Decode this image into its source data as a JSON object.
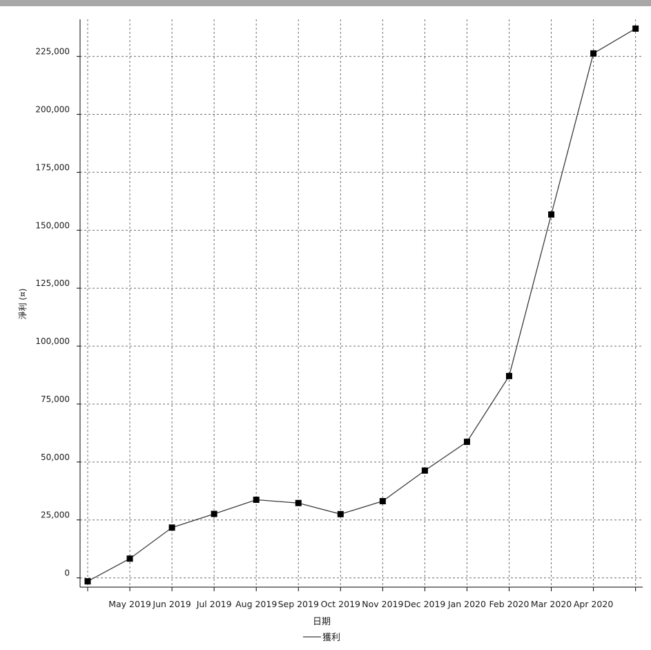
{
  "chart_data": {
    "type": "line",
    "x_tick_labels": [
      "May 2019",
      "Jun 2019",
      "Jul 2019",
      "Aug 2019",
      "Sep 2019",
      "Oct 2019",
      "Nov 2019",
      "Dec 2019",
      "Jan 2020",
      "Feb 2020",
      "Mar 2020",
      "Apr 2020"
    ],
    "x": [
      "2019-04",
      "2019-05",
      "2019-06",
      "2019-07",
      "2019-08",
      "2019-09",
      "2019-10",
      "2019-11",
      "2019-12",
      "2020-01",
      "2020-02",
      "2020-03",
      "2020-04",
      "2020-05"
    ],
    "series": [
      {
        "name": "獲利",
        "values": [
          -1500,
          8300,
          21700,
          27600,
          33700,
          32300,
          27500,
          33100,
          46300,
          58700,
          87100,
          156800,
          226300,
          237000
        ]
      }
    ],
    "xlabel": "日期",
    "ylabel": "淨利 (¤)",
    "ylim": [
      -4000,
      241000
    ],
    "y_ticks": [
      0,
      25000,
      50000,
      75000,
      100000,
      125000,
      150000,
      175000,
      200000,
      225000
    ],
    "y_tick_labels": [
      "0",
      "25,000",
      "50,000",
      "75,000",
      "100,000",
      "125,000",
      "150,000",
      "175,000",
      "200,000",
      "225,000"
    ],
    "grid": true,
    "grid_style": "dashed",
    "legend_position": "bottom-center",
    "colors": {
      "line": "#3a3a3a",
      "marker": "#000000",
      "grid": "#6e6e6e",
      "axis": "#000000",
      "header": "#a8a8a8"
    }
  }
}
